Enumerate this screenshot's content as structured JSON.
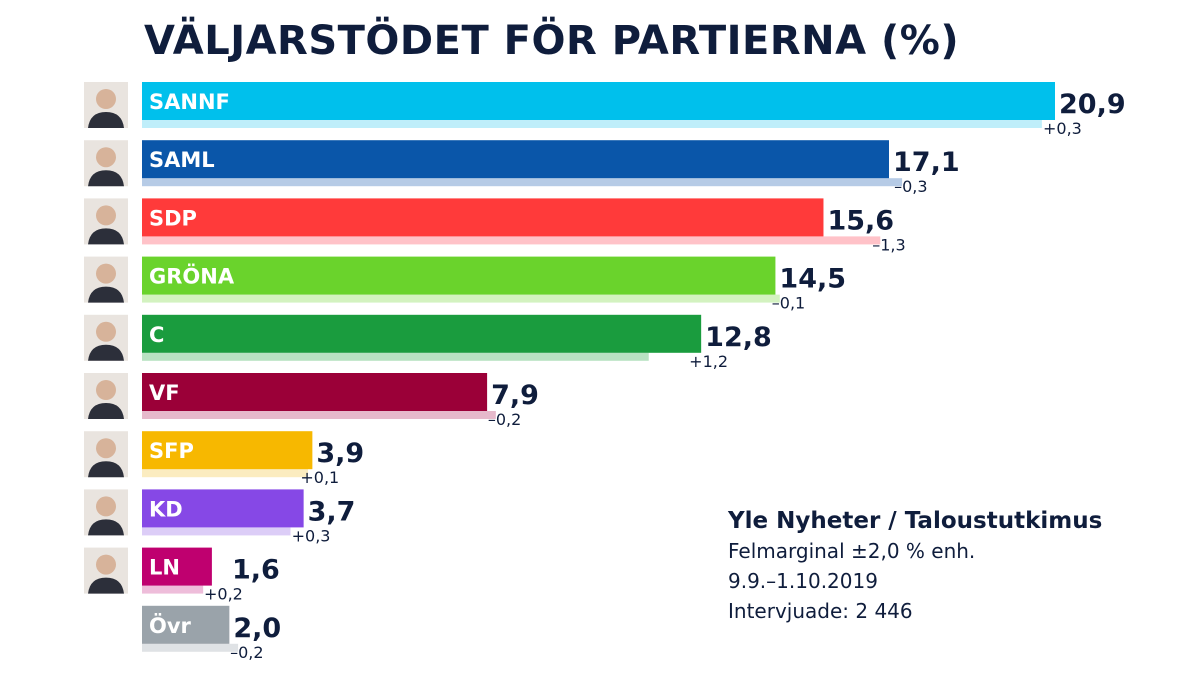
{
  "chart_data": {
    "type": "bar",
    "orientation": "horizontal",
    "title": "VÄLJARSTÖDET FÖR PARTIERNA (%)",
    "categories": [
      "SANNF",
      "SAML",
      "SDP",
      "GRÖNA",
      "C",
      "VF",
      "SFP",
      "KD",
      "LN",
      "Övr"
    ],
    "values": [
      20.9,
      17.1,
      15.6,
      14.5,
      12.8,
      7.9,
      3.9,
      3.7,
      1.6,
      2.0
    ],
    "value_labels": [
      "20,9",
      "17,1",
      "15,6",
      "14,5",
      "12,8",
      "7,9",
      "3,9",
      "3,7",
      "1,6",
      "2,0"
    ],
    "previous_values": [
      20.6,
      17.4,
      16.9,
      14.6,
      11.6,
      8.1,
      3.8,
      3.4,
      1.4,
      2.2
    ],
    "change_labels": [
      "+0,3",
      "–0,3",
      "–1,3",
      "–0,1",
      "+1,2",
      "–0,2",
      "+0,1",
      "+0,3",
      "+0,2",
      "–0,2"
    ],
    "colors": [
      "#00c0ec",
      "#0a56a9",
      "#ff3a3a",
      "#6ad32c",
      "#1a9c3e",
      "#9b0038",
      "#f7b800",
      "#8648e6",
      "#bf006f",
      "#9aa3aa"
    ],
    "previous_colors": [
      "#bfeefa",
      "#b6cbe6",
      "#ffc2c8",
      "#d3f2c0",
      "#b8e2c2",
      "#e6b9cb",
      "#fbecc0",
      "#dccdf7",
      "#eebdda",
      "#dfe2e5"
    ],
    "portraits": [
      "portrait",
      "portrait",
      "portrait",
      "portrait",
      "portrait",
      "portrait",
      "portrait",
      "portrait",
      "portrait",
      ""
    ],
    "xlim": [
      0,
      20.9
    ],
    "grid": false,
    "legend": "none",
    "xlabel": "",
    "ylabel": ""
  },
  "source": {
    "title": "Yle Nyheter / Taloustutkimus",
    "margin": "Felmarginal ±2,0 % enh.",
    "period": "9.9.–1.10.2019",
    "interviewed": "Intervjuade: 2 446"
  }
}
